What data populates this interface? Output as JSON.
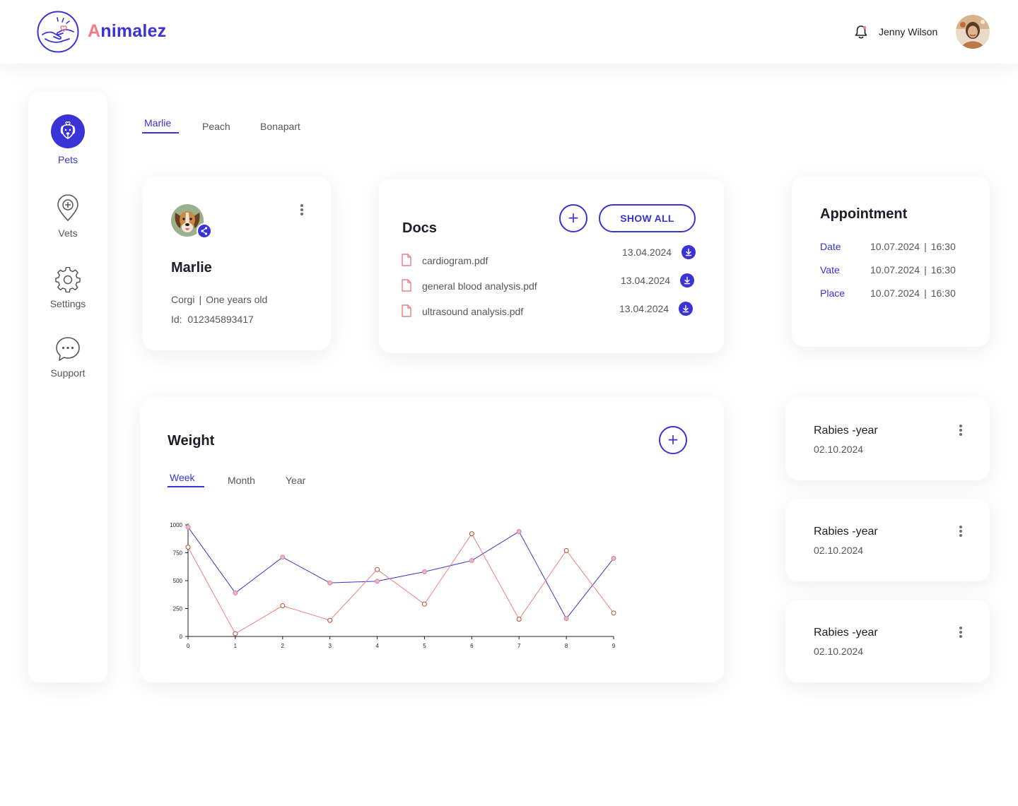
{
  "app": {
    "brand_first": "A",
    "brand_rest": "nimalez"
  },
  "header": {
    "user_name": "Jenny Wilson"
  },
  "sidebar": {
    "items": [
      {
        "label": "Pets",
        "icon": "dog-icon",
        "active": true
      },
      {
        "label": "Vets",
        "icon": "location-pin-plus-icon",
        "active": false
      },
      {
        "label": "Settings",
        "icon": "gear-icon",
        "active": false
      },
      {
        "label": "Support",
        "icon": "chat-bubble-icon",
        "active": false
      }
    ]
  },
  "pet_tabs": [
    {
      "label": "Marlie",
      "active": true
    },
    {
      "label": "Peach",
      "active": false
    },
    {
      "label": "Bonapart",
      "active": false
    }
  ],
  "pet": {
    "name": "Marlie",
    "breed": "Corgi",
    "separator": "|",
    "age": "One years old",
    "id_label": "Id:",
    "id_value": "012345893417"
  },
  "docs": {
    "title": "Docs",
    "add_label": "+",
    "show_all_label": "SHOW ALL",
    "files": [
      {
        "name": "cardiogram.pdf",
        "date": "13.04.2024"
      },
      {
        "name": "general blood analysis.pdf",
        "date": "13.04.2024"
      },
      {
        "name": "ultrasound analysis.pdf",
        "date": "13.04.2024"
      }
    ]
  },
  "appointment": {
    "title": "Appointment",
    "separator": "|",
    "rows": [
      {
        "label": "Date",
        "date": "10.07.2024",
        "time": "16:30"
      },
      {
        "label": "Vate",
        "date": "10.07.2024",
        "time": "16:30"
      },
      {
        "label": "Place",
        "date": "10.07.2024",
        "time": "16:30"
      }
    ]
  },
  "weight": {
    "title": "Weight",
    "add_label": "+",
    "tabs": [
      {
        "label": "Week",
        "active": true
      },
      {
        "label": "Month",
        "active": false
      },
      {
        "label": "Year",
        "active": false
      }
    ]
  },
  "vaccinations": [
    {
      "name": "Rabies -year",
      "date": "02.10.2024"
    },
    {
      "name": "Rabies -year",
      "date": "02.10.2024"
    },
    {
      "name": "Rabies -year",
      "date": "02.10.2024"
    }
  ],
  "colors": {
    "accent": "#3a33d6",
    "brand_pink": "#f07c86",
    "series_red": "#f07c86",
    "series_blue": "#3a33d6"
  },
  "chart_data": {
    "type": "line",
    "x": [
      0,
      1,
      2,
      3,
      4,
      5,
      6,
      7,
      8,
      9
    ],
    "series": [
      {
        "values": [
          980,
          390,
          710,
          480,
          495,
          580,
          680,
          940,
          160,
          700
        ]
      },
      {
        "values": [
          800,
          25,
          275,
          145,
          600,
          290,
          920,
          155,
          770,
          210
        ]
      }
    ],
    "ylim": [
      0,
      1000
    ],
    "yticks": [
      0,
      250,
      500,
      750,
      1000
    ],
    "xticks": [
      0,
      1,
      2,
      3,
      4,
      5,
      6,
      7,
      8,
      9
    ],
    "grid": false,
    "legend": "none"
  }
}
